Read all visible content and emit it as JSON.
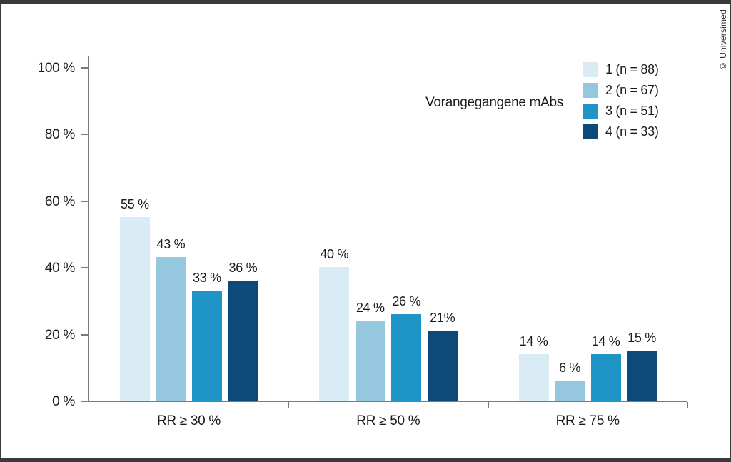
{
  "watermark": "© Universimed",
  "colors": {
    "frame": "#3a3a3a",
    "axis": "#7a7a7a",
    "text": "#1b1b1b",
    "background": "#ffffff"
  },
  "chart_data": {
    "type": "bar",
    "title": "",
    "legend_title": "Vorangegangene mAbs",
    "legend_position": "top-right",
    "grid": false,
    "categories": [
      "RR ≥ 30 %",
      "RR ≥ 50 %",
      "RR ≥ 75 %"
    ],
    "series": [
      {
        "name": "1 (n = 88)",
        "color": "#d9ecf5",
        "values": [
          55,
          40,
          14
        ],
        "labels": [
          "55 %",
          "40 %",
          "14 %"
        ]
      },
      {
        "name": "2 (n = 67)",
        "color": "#95c8de",
        "values": [
          43,
          24,
          6
        ],
        "labels": [
          "43 %",
          "24 %",
          "6 %"
        ]
      },
      {
        "name": "3 (n = 51)",
        "color": "#1e95c6",
        "values": [
          33,
          26,
          14
        ],
        "labels": [
          "33 %",
          "26 %",
          "14 %"
        ]
      },
      {
        "name": "4 (n = 33)",
        "color": "#0d4a7a",
        "values": [
          36,
          21,
          15
        ],
        "labels": [
          "36 %",
          "21%",
          "15 %"
        ]
      }
    ],
    "y_axis": {
      "ylim": [
        0,
        100
      ],
      "ticks": [
        0,
        20,
        40,
        60,
        80,
        100
      ],
      "tick_labels": [
        "0 %",
        "20 %",
        "40 %",
        "60 %",
        "80 %",
        "100 %"
      ]
    }
  }
}
